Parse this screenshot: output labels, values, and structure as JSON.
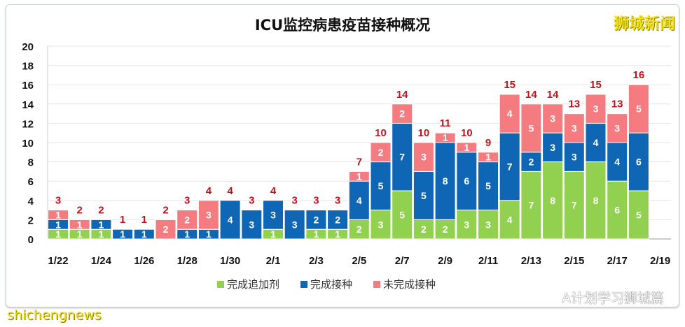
{
  "chart_data": {
    "type": "bar",
    "stacked": true,
    "title": "ICU监控病患疫苗接种概况",
    "xlabel": "",
    "ylabel": "",
    "ylim": [
      0,
      20
    ],
    "yticks": [
      0,
      2,
      4,
      6,
      8,
      10,
      12,
      14,
      16,
      18,
      20
    ],
    "grid": true,
    "legend_position": "bottom",
    "categories": [
      "1/22",
      "1/23",
      "1/24",
      "1/25",
      "1/26",
      "1/27",
      "1/28",
      "1/29",
      "1/30",
      "1/31",
      "2/1",
      "2/2",
      "2/3",
      "2/4",
      "2/5",
      "2/6",
      "2/7",
      "2/8",
      "2/9",
      "2/10",
      "2/11",
      "2/12",
      "2/13",
      "2/14",
      "2/15",
      "2/16",
      "2/17",
      "2/18"
    ],
    "xtick_labels": [
      "1/22",
      "1/24",
      "1/26",
      "1/28",
      "1/30",
      "2/1",
      "2/3",
      "2/5",
      "2/7",
      "2/9",
      "2/11",
      "2/13",
      "2/15",
      "2/17",
      "2/19"
    ],
    "series": [
      {
        "name": "完成追加剂",
        "color": "#92d050",
        "values": [
          1,
          1,
          1,
          0,
          0,
          0,
          0,
          0,
          0,
          0,
          1,
          0,
          1,
          1,
          2,
          3,
          5,
          2,
          2,
          3,
          3,
          4,
          7,
          8,
          7,
          8,
          6,
          5
        ]
      },
      {
        "name": "完成接种",
        "color": "#0f66b5",
        "values": [
          1,
          0,
          1,
          1,
          1,
          0,
          1,
          1,
          4,
          3,
          3,
          3,
          2,
          2,
          4,
          5,
          7,
          5,
          8,
          6,
          5,
          7,
          2,
          3,
          3,
          4,
          4,
          6
        ]
      },
      {
        "name": "未完成接种",
        "color": "#f47c80",
        "values": [
          1,
          1,
          0,
          0,
          0,
          2,
          2,
          3,
          0,
          0,
          0,
          0,
          0,
          0,
          1,
          2,
          2,
          3,
          1,
          1,
          1,
          4,
          5,
          3,
          3,
          3,
          3,
          5
        ]
      }
    ],
    "totals": [
      3,
      2,
      2,
      1,
      1,
      2,
      3,
      4,
      4,
      3,
      4,
      3,
      3,
      3,
      7,
      10,
      14,
      10,
      11,
      10,
      9,
      15,
      14,
      14,
      13,
      15,
      13,
      16
    ]
  },
  "watermarks": {
    "top_right": "狮城新闻",
    "bottom_right": "A计划学习狮城篇",
    "bottom_left": "shichengnews"
  }
}
